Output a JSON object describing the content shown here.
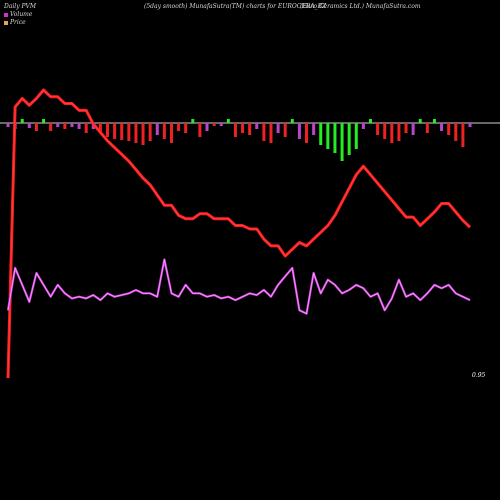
{
  "header": {
    "left": "Daily PVM",
    "center": "(5day smooth) MunafaSutra(TM) charts for EUROCERA_BZ",
    "right": "(Euro  Ceramics Ltd.) MunafaSutra.com"
  },
  "legend": [
    {
      "label": "Volume",
      "color": "#cc33cc"
    },
    {
      "label": "Price",
      "color": "#e8a060"
    }
  ],
  "chart_data": {
    "type": "line",
    "title": "",
    "x": [
      1,
      2,
      3,
      4,
      5,
      6,
      7,
      8,
      9,
      10,
      11,
      12,
      13,
      14,
      15,
      16,
      17,
      18,
      19,
      20,
      21,
      22,
      23,
      24,
      25,
      26,
      27,
      28,
      29,
      30,
      31,
      32,
      33,
      34,
      35,
      36,
      37,
      38,
      39,
      40,
      41,
      42,
      43,
      44,
      45,
      46,
      47,
      48,
      49,
      50,
      51,
      52,
      53,
      54,
      55,
      56,
      57,
      58,
      59,
      60,
      61,
      62,
      63,
      64,
      65,
      66
    ],
    "pvm_bar_colors": {
      "positive": "#22ee22",
      "negative": "#ee2222",
      "neutral": "#bb44cc"
    },
    "pvm_bars": [
      -4,
      -6,
      18,
      -5,
      -8,
      5,
      -8,
      -4,
      -6,
      -4,
      -6,
      -10,
      -6,
      -10,
      -14,
      -16,
      -17,
      -18,
      -20,
      -22,
      -18,
      -12,
      -16,
      -20,
      -8,
      -10,
      10,
      -14,
      -8,
      -3,
      -3,
      5,
      -14,
      -10,
      -12,
      -6,
      -18,
      -20,
      -10,
      -14,
      10,
      -16,
      -20,
      -12,
      -22,
      -26,
      -30,
      -38,
      -32,
      -26,
      -6,
      10,
      -12,
      -16,
      -20,
      -18,
      -10,
      -12,
      8,
      -10,
      14,
      -8,
      -12,
      -18,
      -24,
      -4
    ],
    "pvm_bar_kinds": [
      "v",
      "v",
      "g",
      "v",
      "r",
      "g",
      "r",
      "v",
      "r",
      "v",
      "v",
      "r",
      "v",
      "r",
      "r",
      "r",
      "r",
      "r",
      "r",
      "r",
      "r",
      "v",
      "r",
      "r",
      "r",
      "r",
      "g",
      "r",
      "v",
      "r",
      "v",
      "g",
      "r",
      "r",
      "r",
      "v",
      "r",
      "r",
      "v",
      "r",
      "g",
      "v",
      "r",
      "v",
      "g",
      "g",
      "g",
      "g",
      "g",
      "g",
      "v",
      "g",
      "r",
      "r",
      "r",
      "r",
      "r",
      "v",
      "g",
      "r",
      "g",
      "v",
      "r",
      "r",
      "r",
      "v"
    ],
    "series": [
      {
        "color": "#ff2020",
        "values": [
          100,
          260,
          265,
          261,
          265,
          270,
          266,
          266,
          262,
          262,
          258,
          258,
          250,
          245,
          240,
          236,
          232,
          228,
          223,
          218,
          214,
          208,
          202,
          202,
          196,
          194,
          194,
          197,
          197,
          194,
          194,
          194,
          190,
          190,
          188,
          188,
          182,
          178,
          178,
          172,
          176,
          180,
          178,
          182,
          186,
          190,
          196,
          204,
          212,
          220,
          225,
          220,
          215,
          210,
          205,
          200,
          195,
          195,
          190,
          194,
          198,
          203,
          203,
          198,
          193,
          189
        ],
        "stroke_color": "#ff4040"
      },
      {
        "color": "#cc44dd",
        "values": [
          140,
          165,
          155,
          145,
          162,
          155,
          148,
          155,
          150,
          147,
          148,
          147,
          149,
          146,
          150,
          148,
          149,
          150,
          152,
          150,
          150,
          148,
          170,
          150,
          148,
          155,
          150,
          150,
          148,
          149,
          147,
          148,
          146,
          148,
          150,
          149,
          152,
          148,
          155,
          160,
          165,
          140,
          138,
          162,
          150,
          158,
          155,
          150,
          152,
          155,
          153,
          148,
          150,
          140,
          147,
          158,
          148,
          150,
          146,
          150,
          155,
          153,
          155,
          150,
          148,
          146
        ],
        "stroke_color": "#ff99ff"
      }
    ],
    "end_label": "0.95",
    "grid": false,
    "zero_line": true,
    "legend_position": "top-left"
  }
}
